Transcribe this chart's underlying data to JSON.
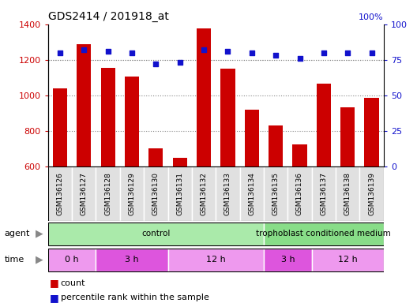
{
  "title": "GDS2414 / 201918_at",
  "samples": [
    "GSM136126",
    "GSM136127",
    "GSM136128",
    "GSM136129",
    "GSM136130",
    "GSM136131",
    "GSM136132",
    "GSM136133",
    "GSM136134",
    "GSM136135",
    "GSM136136",
    "GSM136137",
    "GSM136138",
    "GSM136139"
  ],
  "counts": [
    1040,
    1290,
    1155,
    1105,
    705,
    650,
    1375,
    1150,
    920,
    830,
    725,
    1065,
    935,
    985
  ],
  "percentile_ranks": [
    80,
    82,
    81,
    80,
    72,
    73,
    82,
    81,
    80,
    78,
    76,
    80,
    80,
    80
  ],
  "ylim_left": [
    600,
    1400
  ],
  "ylim_right": [
    0,
    100
  ],
  "yticks_left": [
    800,
    1000,
    1200
  ],
  "yticks_left_all": [
    600,
    800,
    1000,
    1200,
    1400
  ],
  "yticks_right": [
    0,
    25,
    50,
    75,
    100
  ],
  "bar_color": "#cc0000",
  "dot_color": "#1111cc",
  "agent_groups": [
    {
      "label": "control",
      "start": 0,
      "end": 9,
      "color": "#aaeaaa"
    },
    {
      "label": "trophoblast conditioned medium",
      "start": 9,
      "end": 14,
      "color": "#88dd88"
    }
  ],
  "time_groups": [
    {
      "label": "0 h",
      "start": 0,
      "end": 2,
      "color": "#ee99ee"
    },
    {
      "label": "3 h",
      "start": 2,
      "end": 5,
      "color": "#dd55dd"
    },
    {
      "label": "12 h",
      "start": 5,
      "end": 9,
      "color": "#ee99ee"
    },
    {
      "label": "3 h",
      "start": 9,
      "end": 11,
      "color": "#dd55dd"
    },
    {
      "label": "12 h",
      "start": 11,
      "end": 14,
      "color": "#ee99ee"
    }
  ],
  "legend_count_color": "#cc0000",
  "legend_pct_color": "#1111cc",
  "bg_color": "#ffffff",
  "plot_bg_color": "#ffffff",
  "grid_color": "#888888",
  "tick_label_color_left": "#cc0000",
  "tick_label_color_right": "#1111cc",
  "xlabel_bg": "#dddddd",
  "agent_label_color": "#555555",
  "time_label_color": "#555555"
}
